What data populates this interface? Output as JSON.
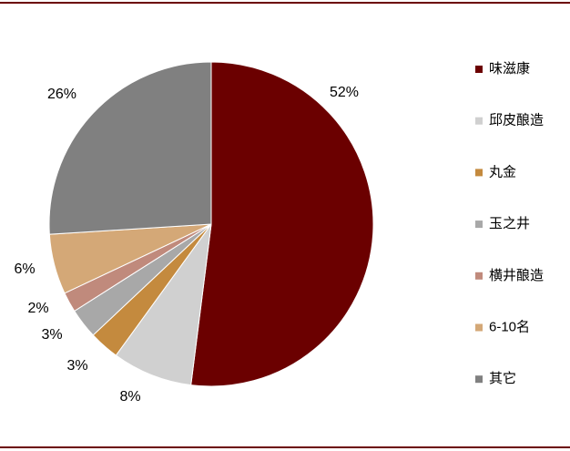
{
  "chart_data": {
    "type": "pie",
    "categories": [
      "味滋康",
      "邱皮酿造",
      "丸金",
      "玉之井",
      "横井酿造",
      "6-10名",
      "其它"
    ],
    "values": [
      52,
      8,
      3,
      3,
      2,
      6,
      26
    ],
    "value_labels": [
      "52%",
      "8%",
      "3%",
      "3%",
      "2%",
      "6%",
      "26%"
    ],
    "colors": [
      "#6b0000",
      "#d0d0d0",
      "#c48a3e",
      "#a8a8a8",
      "#c08a7c",
      "#d4a877",
      "#808080"
    ],
    "legend": "right"
  }
}
